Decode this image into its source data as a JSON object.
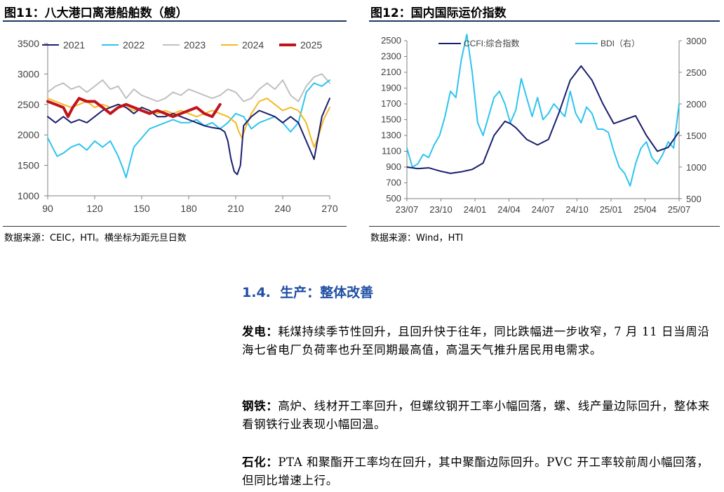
{
  "figures": [
    {
      "title": "图11：八大港口离港船舶数（艘）",
      "source": "数据来源：CEIC，HTI。横坐标为距元旦日数"
    },
    {
      "title": "图12：国内国际运价指数",
      "source": "数据来源：Wind，HTI"
    }
  ],
  "section": {
    "number": "1.4.",
    "title": "生产：整体改善"
  },
  "paragraphs": [
    {
      "label": "发电：",
      "text": "耗煤持续季节性回升，且回升快于往年，同比跌幅进一步收窄，7 月 11 日当周沿海七省电厂负荷率也升至同期最高值，高温天气推升居民用电需求。"
    },
    {
      "label": "钢铁：",
      "text": "高炉、线材开工率回升，但螺纹钢开工率小幅回落，螺、线产量边际回升，整体来看钢铁行业表现小幅回温。"
    },
    {
      "label": "石化：",
      "text": "PTA 和聚酯开工率均在回升，其中聚酯边际回升。PVC 开工率较前周小幅回落，但同比增速上行。"
    }
  ],
  "chart_data": [
    {
      "type": "line",
      "xlim": [
        90,
        270
      ],
      "ylim": [
        1000,
        3500
      ],
      "x_ticks": [
        90,
        120,
        150,
        180,
        210,
        240,
        270
      ],
      "y_ticks": [
        1000,
        1500,
        2000,
        2500,
        3000,
        3500
      ],
      "legend_position": "top",
      "grid": false,
      "series": [
        {
          "name": "2021",
          "color": "#1a1f6e",
          "width": 2,
          "x": [
            90,
            95,
            100,
            105,
            110,
            115,
            120,
            125,
            130,
            135,
            140,
            145,
            150,
            155,
            160,
            165,
            170,
            175,
            180,
            185,
            190,
            195,
            200,
            203,
            205,
            207,
            209,
            211,
            213,
            215,
            220,
            225,
            230,
            235,
            240,
            245,
            250,
            255,
            260,
            265,
            270
          ],
          "y": [
            2300,
            2200,
            2300,
            2200,
            2250,
            2200,
            2300,
            2400,
            2450,
            2500,
            2450,
            2350,
            2450,
            2400,
            2300,
            2300,
            2350,
            2300,
            2250,
            2200,
            2150,
            2120,
            2100,
            2050,
            1900,
            1600,
            1400,
            1350,
            1500,
            2150,
            2300,
            2400,
            2350,
            2300,
            2200,
            2300,
            2200,
            1900,
            1600,
            2300,
            2600
          ]
        },
        {
          "name": "2022",
          "color": "#2ec4ef",
          "width": 2,
          "x": [
            90,
            93,
            96,
            100,
            105,
            110,
            115,
            120,
            125,
            130,
            135,
            138,
            140,
            142,
            145,
            150,
            155,
            160,
            165,
            170,
            175,
            180,
            185,
            190,
            195,
            200,
            205,
            210,
            215,
            220,
            225,
            230,
            235,
            240,
            245,
            250,
            255,
            260,
            265,
            270
          ],
          "y": [
            1950,
            1800,
            1650,
            1700,
            1800,
            1850,
            1750,
            1900,
            1800,
            1900,
            1650,
            1450,
            1300,
            1500,
            1800,
            1950,
            2100,
            2150,
            2200,
            2250,
            2200,
            2200,
            2250,
            2150,
            2200,
            2100,
            2200,
            2350,
            2300,
            2100,
            2200,
            2250,
            2300,
            2200,
            2050,
            2200,
            2700,
            2850,
            2800,
            2900
          ]
        },
        {
          "name": "2023",
          "color": "#c0c0c0",
          "width": 2,
          "x": [
            90,
            95,
            100,
            105,
            110,
            115,
            120,
            125,
            130,
            135,
            140,
            145,
            150,
            155,
            160,
            165,
            170,
            175,
            180,
            185,
            190,
            195,
            200,
            205,
            210,
            215,
            220,
            225,
            230,
            235,
            240,
            245,
            250,
            255,
            260,
            265,
            270
          ],
          "y": [
            2700,
            2800,
            2850,
            2750,
            2800,
            2700,
            2800,
            2900,
            2750,
            2800,
            2600,
            2750,
            2650,
            2600,
            2550,
            2600,
            2700,
            2650,
            2750,
            2700,
            2650,
            2600,
            2650,
            2750,
            2700,
            2550,
            2600,
            2750,
            2850,
            2750,
            2900,
            2650,
            2550,
            2800,
            2950,
            3000,
            2850
          ]
        },
        {
          "name": "2024",
          "color": "#f5b820",
          "width": 2,
          "x": [
            90,
            95,
            100,
            105,
            110,
            115,
            120,
            125,
            130,
            135,
            140,
            145,
            150,
            155,
            160,
            165,
            170,
            175,
            180,
            185,
            190,
            195,
            200,
            205,
            210,
            212,
            214,
            216,
            220,
            225,
            230,
            235,
            240,
            245,
            250,
            255,
            258,
            260,
            263,
            266,
            270
          ],
          "y": [
            2600,
            2550,
            2500,
            2450,
            2500,
            2550,
            2450,
            2500,
            2450,
            2500,
            2450,
            2400,
            2450,
            2400,
            2350,
            2400,
            2350,
            2400,
            2350,
            2300,
            2350,
            2400,
            2350,
            2300,
            2200,
            2050,
            1950,
            2100,
            2350,
            2550,
            2600,
            2500,
            2400,
            2450,
            2400,
            2200,
            1950,
            1800,
            2000,
            2250,
            2450
          ]
        },
        {
          "name": "2025",
          "color": "#c0141a",
          "width": 4,
          "x": [
            90,
            95,
            100,
            103,
            106,
            110,
            115,
            120,
            125,
            130,
            135,
            140,
            145,
            150,
            155,
            160,
            165,
            170,
            175,
            180,
            185,
            190,
            195,
            200
          ],
          "y": [
            2550,
            2500,
            2450,
            2300,
            2450,
            2600,
            2550,
            2550,
            2450,
            2350,
            2450,
            2500,
            2450,
            2400,
            2350,
            2400,
            2350,
            2300,
            2350,
            2400,
            2450,
            2350,
            2300,
            2500
          ]
        }
      ]
    },
    {
      "type": "line",
      "x_tick_labels": [
        "23/07",
        "23/10",
        "24/01",
        "24/04",
        "24/07",
        "24/10",
        "25/01",
        "25/04",
        "25/07"
      ],
      "xlim": [
        0,
        25
      ],
      "ylim_left": [
        500,
        2500
      ],
      "y_ticks_left": [
        500,
        700,
        900,
        1100,
        1300,
        1500,
        1700,
        1900,
        2100,
        2300,
        2500
      ],
      "ylim_right": [
        500,
        3000
      ],
      "y_ticks_right": [
        500,
        1000,
        1500,
        2000,
        2500,
        3000
      ],
      "legend_position": "top",
      "grid": false,
      "series": [
        {
          "name": "CCFI:综合指数",
          "color": "#1a1f6e",
          "width": 2,
          "axis": "left",
          "x": [
            0,
            1,
            2,
            3,
            4,
            5,
            6,
            7,
            8,
            9,
            9.5,
            10,
            11,
            12,
            13,
            14,
            15,
            16,
            17,
            18,
            19,
            20,
            21,
            22,
            23,
            24,
            25
          ],
          "y": [
            900,
            880,
            890,
            850,
            820,
            840,
            870,
            950,
            1300,
            1480,
            1450,
            1400,
            1250,
            1180,
            1250,
            1600,
            2000,
            2180,
            2000,
            1700,
            1450,
            1500,
            1550,
            1300,
            1100,
            1150,
            1350
          ]
        },
        {
          "name": "BDI（右）",
          "color": "#2ec4ef",
          "width": 2,
          "axis": "right",
          "x": [
            0,
            0.5,
            1,
            1.5,
            2,
            2.5,
            3,
            3.5,
            4,
            4.5,
            5,
            5.5,
            6,
            6.5,
            7,
            7.5,
            8,
            8.5,
            9,
            9.5,
            10,
            10.5,
            11,
            11.5,
            12,
            12.5,
            13,
            13.5,
            14,
            14.5,
            15,
            15.5,
            16,
            16.5,
            17,
            17.5,
            18,
            18.5,
            19,
            19.5,
            20,
            20.5,
            21,
            21.5,
            22,
            22.5,
            23,
            23.5,
            24,
            24.5,
            25
          ],
          "y": [
            1300,
            1000,
            1050,
            1200,
            1150,
            1350,
            1500,
            1800,
            2200,
            2100,
            2700,
            3100,
            2500,
            1700,
            1500,
            1800,
            2100,
            2200,
            2000,
            1700,
            1900,
            2400,
            2100,
            1800,
            2100,
            1750,
            1850,
            2000,
            1900,
            1800,
            2200,
            1850,
            1700,
            1950,
            1850,
            1600,
            1600,
            1550,
            1250,
            1000,
            900,
            700,
            1050,
            1300,
            1400,
            1150,
            1050,
            1200,
            1400,
            1300,
            2000
          ]
        }
      ]
    }
  ]
}
